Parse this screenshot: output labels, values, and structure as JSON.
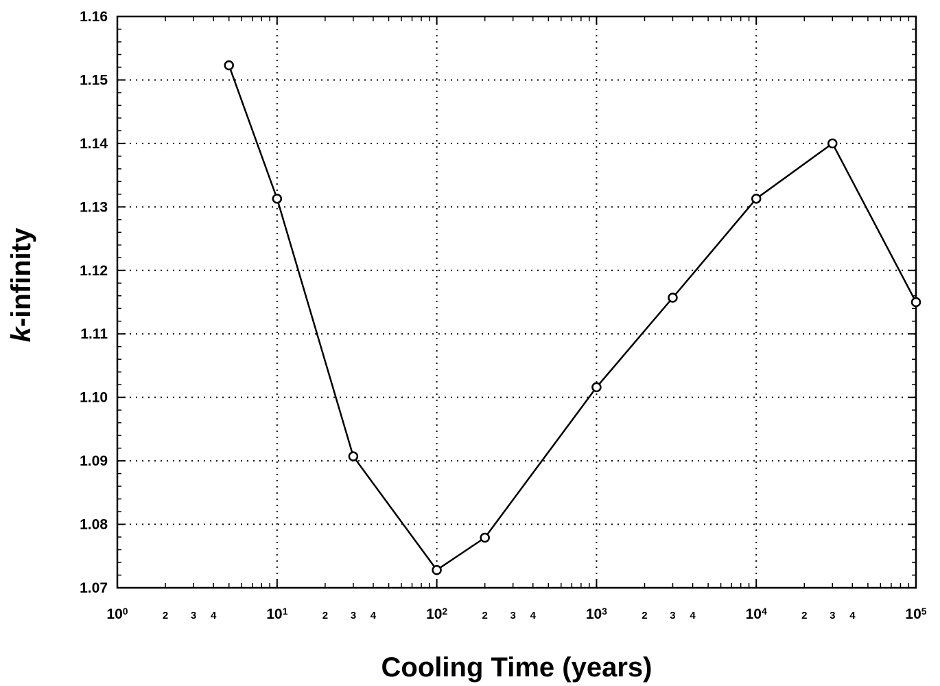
{
  "chart_data": {
    "type": "line",
    "xscale": "log",
    "xlim": [
      1,
      100000
    ],
    "ylim": [
      1.07,
      1.16
    ],
    "grid": true,
    "xlabel": "Cooling Time (years)",
    "ylabel_italic": "k",
    "ylabel_rest": "-infinity",
    "y_ticks": [
      "1.07",
      "1.08",
      "1.09",
      "1.10",
      "1.11",
      "1.12",
      "1.13",
      "1.14",
      "1.15",
      "1.16"
    ],
    "x_major_ticks": [
      {
        "value": 1,
        "base": "10",
        "exp": "0"
      },
      {
        "value": 10,
        "base": "10",
        "exp": "1"
      },
      {
        "value": 100,
        "base": "10",
        "exp": "2"
      },
      {
        "value": 1000,
        "base": "10",
        "exp": "3"
      },
      {
        "value": 10000,
        "base": "10",
        "exp": "4"
      },
      {
        "value": 100000,
        "base": "10",
        "exp": "5"
      }
    ],
    "x_minor_labels": [
      {
        "value": 2,
        "label": "2"
      },
      {
        "value": 3,
        "label": "3"
      },
      {
        "value": 4,
        "label": "4"
      },
      {
        "value": 20,
        "label": "2"
      },
      {
        "value": 30,
        "label": "3"
      },
      {
        "value": 40,
        "label": "4"
      },
      {
        "value": 200,
        "label": "2"
      },
      {
        "value": 300,
        "label": "3"
      },
      {
        "value": 400,
        "label": "4"
      },
      {
        "value": 2000,
        "label": "2"
      },
      {
        "value": 3000,
        "label": "3"
      },
      {
        "value": 4000,
        "label": "4"
      },
      {
        "value": 20000,
        "label": "2"
      },
      {
        "value": 30000,
        "label": "3"
      },
      {
        "value": 40000,
        "label": "4"
      }
    ],
    "series": [
      {
        "x": [
          5,
          10,
          30,
          100,
          200,
          1000,
          3000,
          10000,
          30000,
          100000
        ],
        "y": [
          1.1523,
          1.1313,
          1.0907,
          1.0728,
          1.0779,
          1.1016,
          1.1157,
          1.1313,
          1.14,
          1.115
        ],
        "marker": "open-circle",
        "color": "#000000"
      }
    ]
  }
}
